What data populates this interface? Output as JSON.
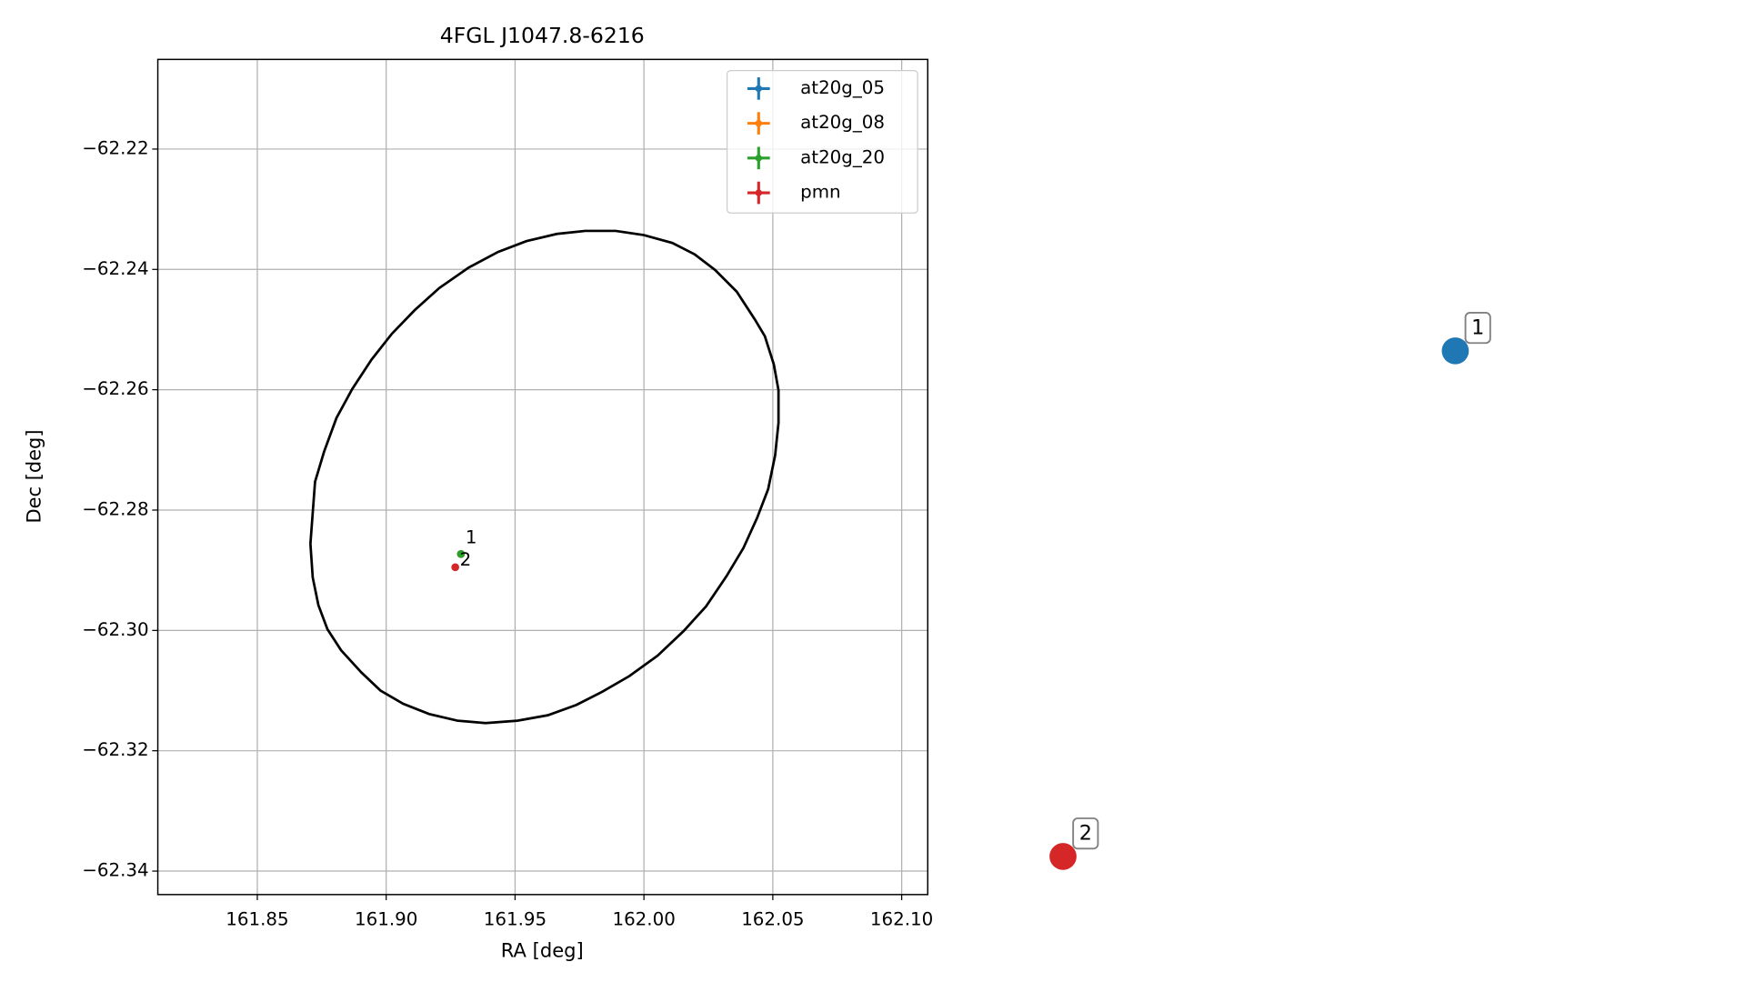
{
  "chart_data": {
    "type": "scatter",
    "title": "4FGL J1047.8-6216",
    "x_label": "RA [deg]",
    "y_label": "Dec [deg]",
    "xlim": [
      161.8114,
      162.1101
    ],
    "ylim": [
      -62.3439,
      -62.2051
    ],
    "xticks": [
      161.85,
      {
        "value": 161.9,
        "label": "161.90"
      },
      161.95,
      {
        "value": 162.0,
        "label": "162.00"
      },
      162.05,
      {
        "value": 162.1,
        "label": "162.10"
      }
    ],
    "yticks": [
      {
        "value": -62.22,
        "label": "−62.22"
      },
      {
        "value": -62.24,
        "label": "−62.24"
      },
      {
        "value": -62.26,
        "label": "−62.26"
      },
      {
        "value": -62.28,
        "label": "−62.28"
      },
      {
        "value": -62.3,
        "label": "−62.30"
      },
      {
        "value": -62.32,
        "label": "−62.32"
      },
      {
        "value": -62.34,
        "label": "−62.34"
      }
    ],
    "grid": true,
    "legend": "upper right",
    "series": [
      {
        "name": "at20g_05",
        "color": "#1f77b4",
        "x": [
          161.929
        ],
        "values": [
          -62.2873
        ]
      },
      {
        "name": "at20g_08",
        "color": "#ff7f0e",
        "x": [
          161.929
        ],
        "values": [
          -62.2873
        ]
      },
      {
        "name": "at20g_20",
        "color": "#2ca02c",
        "x": [
          161.929
        ],
        "values": [
          -62.2873
        ]
      },
      {
        "name": "pmn",
        "color": "#d62728",
        "x": [
          161.9268
        ],
        "values": [
          -62.2895
        ]
      }
    ],
    "point_labels": [
      {
        "text": "1",
        "x": 161.929,
        "y": -62.2873
      },
      {
        "text": "2",
        "x": 161.9268,
        "y": -62.2895
      }
    ],
    "ellipse": {
      "color": "#000000",
      "x": [
        161.8706,
        161.8724,
        161.8759,
        161.8807,
        161.8868,
        161.8943,
        161.9022,
        161.911,
        161.9206,
        161.932,
        161.9434,
        161.9544,
        161.9662,
        161.9772,
        161.989,
        162.0,
        162.011,
        162.0197,
        162.0276,
        162.036,
        162.043,
        162.0469,
        162.0504,
        162.0522,
        162.0522,
        162.0509,
        162.0482,
        162.0439,
        162.0386,
        162.032,
        162.0241,
        162.0154,
        162.0053,
        161.9943,
        161.9838,
        161.9737,
        161.9627,
        161.9509,
        161.9386,
        161.9276,
        161.9167,
        161.9066,
        161.8978,
        161.8904,
        161.8825,
        161.8772,
        161.8737,
        161.8715,
        161.8706
      ],
      "y": [
        -62.2856,
        -62.2753,
        -62.2703,
        -62.2647,
        -62.2599,
        -62.255,
        -62.2507,
        -62.2468,
        -62.2431,
        -62.2397,
        -62.2371,
        -62.2353,
        -62.2341,
        -62.2336,
        -62.2336,
        -62.2343,
        -62.2356,
        -62.2375,
        -62.2401,
        -62.2437,
        -62.2483,
        -62.2511,
        -62.2558,
        -62.2601,
        -62.2655,
        -62.2709,
        -62.2765,
        -62.2813,
        -62.2863,
        -62.291,
        -62.296,
        -62.3001,
        -62.3042,
        -62.3076,
        -62.3102,
        -62.3124,
        -62.3141,
        -62.315,
        -62.3154,
        -62.315,
        -62.3139,
        -62.3122,
        -62.31,
        -62.307,
        -62.3033,
        -62.2998,
        -62.2958,
        -62.2912,
        -62.2856
      ]
    },
    "outer_markers": [
      {
        "label": "1",
        "color": "#1f77b4"
      },
      {
        "label": "2",
        "color": "#d62728"
      }
    ]
  }
}
